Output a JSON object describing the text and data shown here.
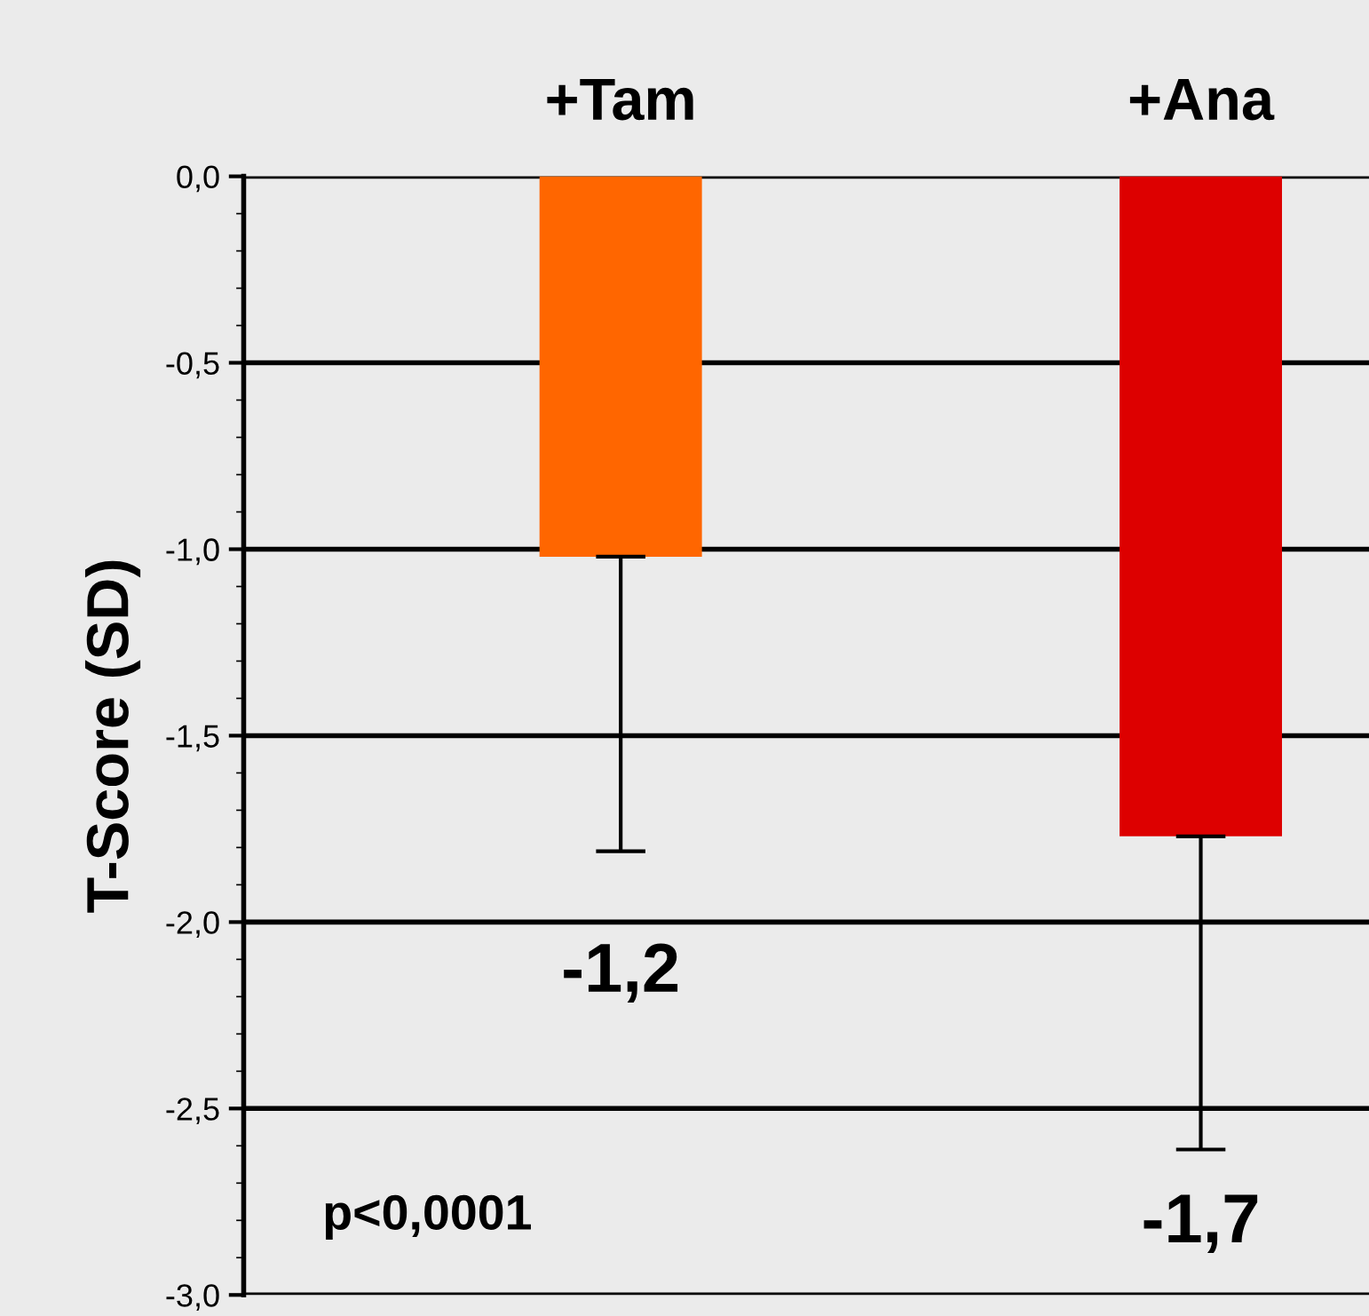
{
  "chart_data": {
    "type": "bar",
    "ylabel": "T-Score (SD)",
    "categories": [
      "+Tam",
      "+Ana"
    ],
    "values": [
      -1.02,
      -1.77
    ],
    "colors": [
      "#ff6600",
      "#dd0000"
    ],
    "errors": [
      [
        -1.81,
        -1.02
      ],
      [
        -2.61,
        -1.77
      ]
    ],
    "ylim": [
      -3.0,
      0.0
    ],
    "yticks": [
      {
        "value": 0.0,
        "label": "0,0"
      },
      {
        "value": -0.5,
        "label": "-0,5"
      },
      {
        "value": -1.0,
        "label": "-1,0"
      },
      {
        "value": -1.5,
        "label": "-1,5"
      },
      {
        "value": -2.0,
        "label": "-2,0"
      },
      {
        "value": -2.5,
        "label": "-2,5"
      },
      {
        "value": -3.0,
        "label": "-3,0"
      }
    ],
    "grid": "y",
    "annotations": [
      "-1,2",
      "-1,7",
      "p<0,0001"
    ]
  }
}
